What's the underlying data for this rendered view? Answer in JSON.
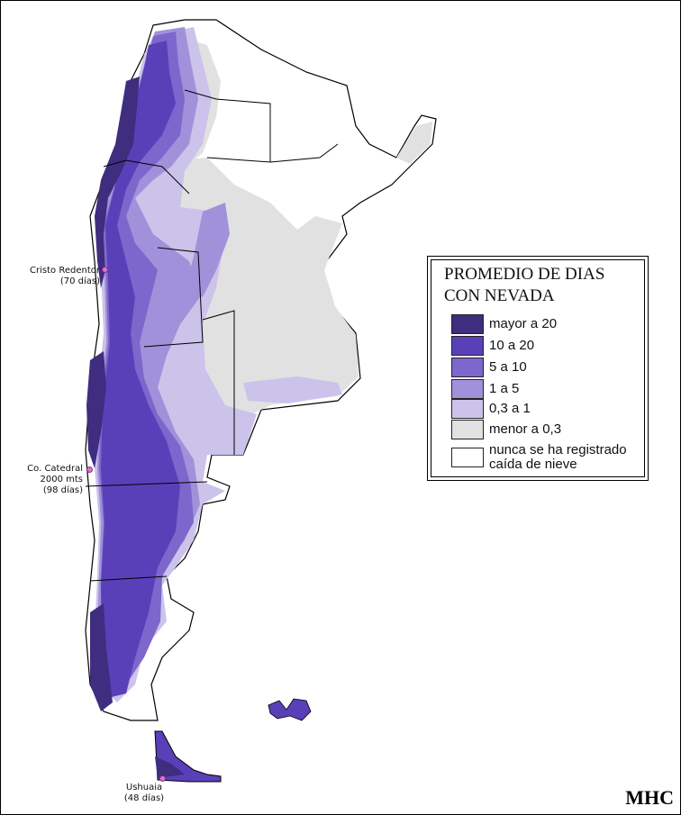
{
  "legend": {
    "title_line1": "PROMEDIO DE DIAS",
    "title_line2": "CON NEVADA",
    "items": [
      {
        "label": "mayor a 20",
        "color": "#3f2d80"
      },
      {
        "label": "10 a 20",
        "color": "#5a40b8"
      },
      {
        "label": "5 a 10",
        "color": "#7d66cc"
      },
      {
        "label": "1 a 5",
        "color": "#a191da"
      },
      {
        "label": "0,3 a 1",
        "color": "#cbc3ea"
      },
      {
        "label": "menor a 0,3",
        "color": "#e1e1e1"
      },
      {
        "label_line1": "nunca se ha registrado",
        "label_line2": "caída de nieve",
        "color": "#ffffff"
      }
    ]
  },
  "places": {
    "cristo": {
      "name": "Cristo Redentor",
      "note": "(70 días)"
    },
    "catedral": {
      "name": "Co. Catedral",
      "elev": "2000 mts",
      "note": "(98 días)"
    },
    "ushuaia": {
      "name": "Ushuaia",
      "note": "(48 días)"
    }
  },
  "colors": {
    "border": "#000000",
    "dot": "#d57ad0"
  },
  "signature": "MHC"
}
